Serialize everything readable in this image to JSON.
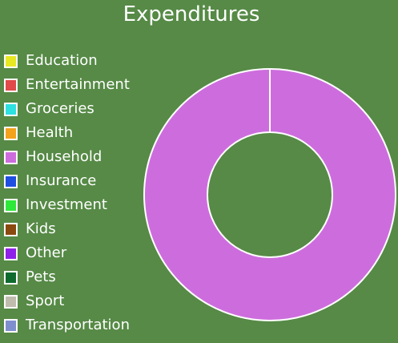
{
  "chart_data": {
    "type": "pie",
    "variant": "donut",
    "title": "Expenditures",
    "categories": [
      "Education",
      "Entertainment",
      "Groceries",
      "Health",
      "Household",
      "Insurance",
      "Investment",
      "Kids",
      "Other",
      "Pets",
      "Sport",
      "Transportation"
    ],
    "values": [
      0,
      0,
      0,
      0,
      100,
      0,
      0,
      0,
      0,
      0,
      0,
      0
    ],
    "colors": [
      "#e8e823",
      "#e04a4a",
      "#2ee0e0",
      "#f2a21c",
      "#cd6ddd",
      "#1f4fe0",
      "#2ee83a",
      "#8a4a0f",
      "#8f22e8",
      "#0f6a2e",
      "#bfbcae",
      "#7f8fce"
    ],
    "legend": "left",
    "grid": false
  }
}
